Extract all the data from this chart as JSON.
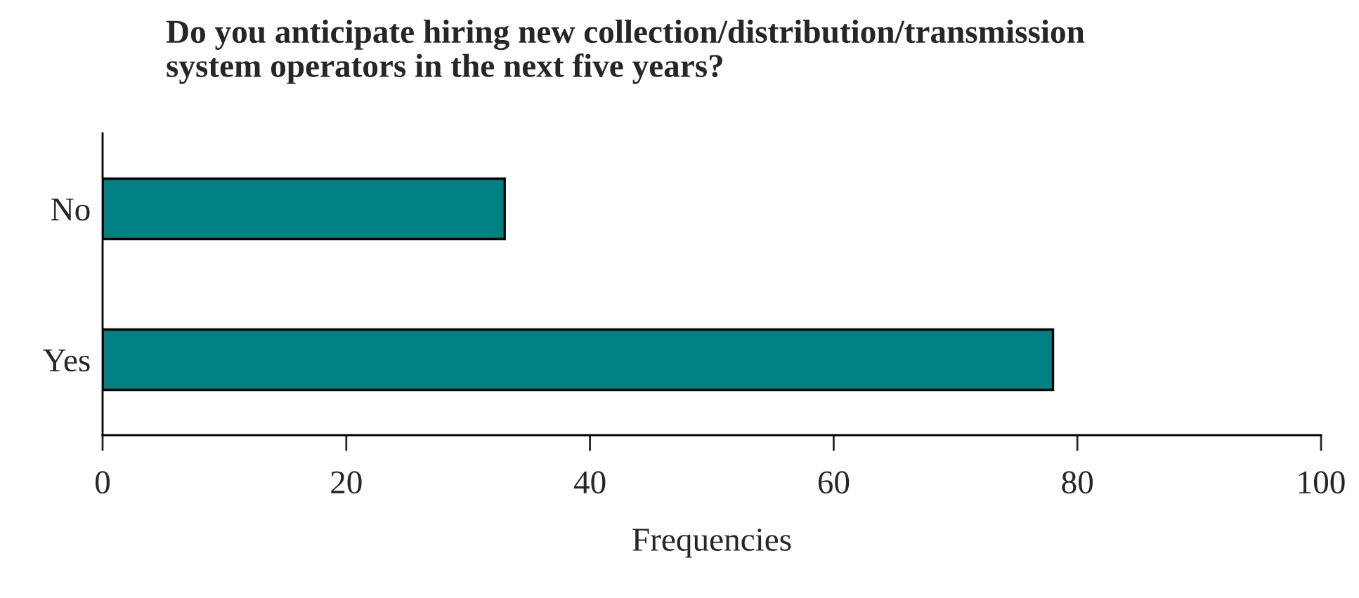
{
  "chart_data": {
    "type": "bar",
    "orientation": "horizontal",
    "title": "Do you anticipate hiring new collection/distribution/transmission\nsystem operators in the next five years?",
    "xlabel": "Frequencies",
    "categories": [
      "No",
      "Yes"
    ],
    "values": [
      33,
      78
    ],
    "color": "#008080",
    "xlim": [
      0,
      100
    ],
    "xticks": [
      0,
      20,
      40,
      60,
      80,
      100
    ],
    "grid": false,
    "legend": false
  }
}
